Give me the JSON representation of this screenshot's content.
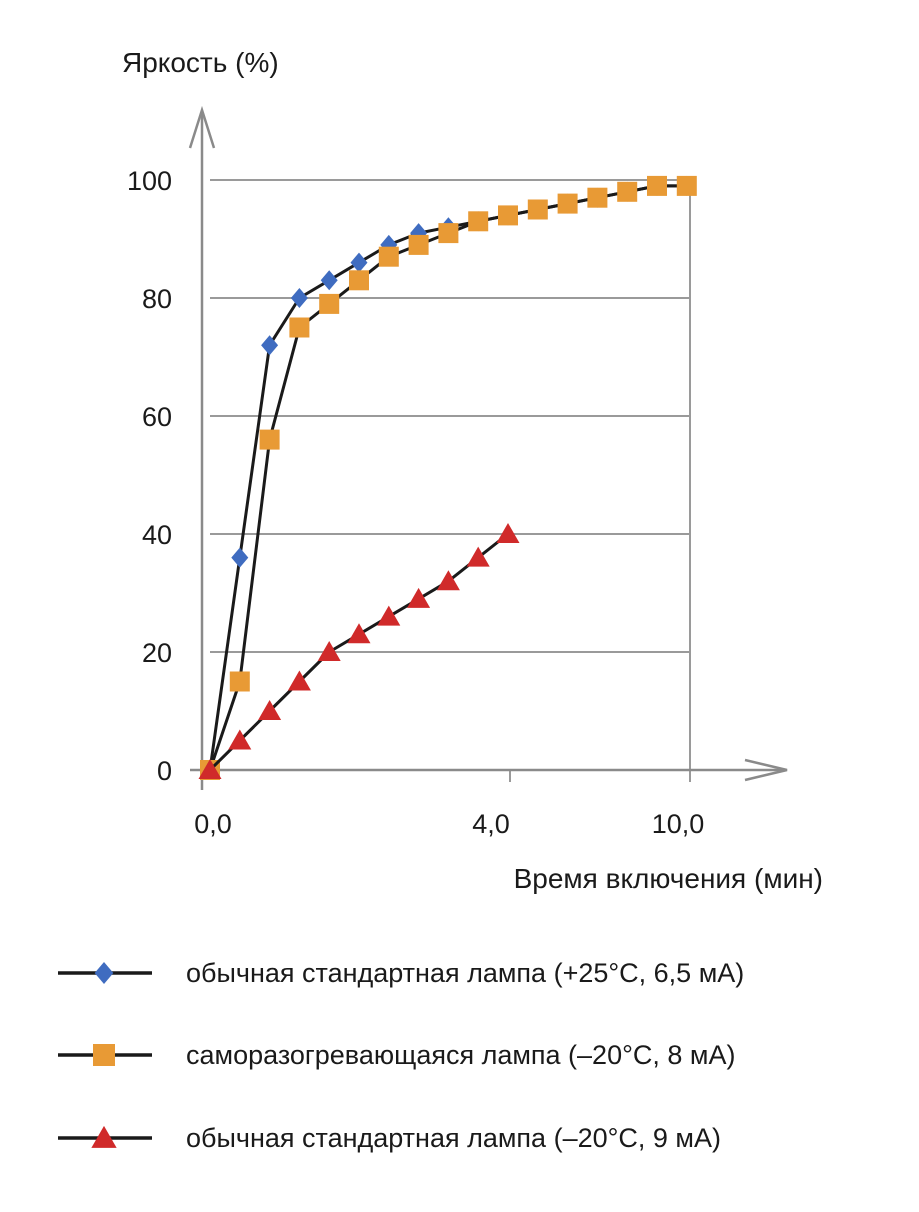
{
  "chart_data": {
    "type": "line",
    "ylabel": "Яркость (%)",
    "xlabel": "Время включения (мин)",
    "ylim": [
      0,
      100
    ],
    "yticks": [
      "0",
      "20",
      "40",
      "60",
      "80",
      "100"
    ],
    "xticks": [
      "0,0",
      "4,0",
      "10,0"
    ],
    "grid": "horizontal",
    "legend_position": "bottom",
    "series": [
      {
        "name": "обычная стандартная лампа (+25°C, 6,5 мА)",
        "marker": "diamond",
        "color": "#3f6cc0",
        "x": [
          0.0,
          0.5,
          1.0,
          1.5,
          2.0,
          2.5,
          3.0,
          3.5,
          4.0,
          4.5,
          5.0,
          5.5,
          6.0,
          6.5,
          7.0,
          7.5,
          8.0
        ],
        "values": [
          0,
          36,
          72,
          80,
          83,
          86,
          89,
          91,
          92,
          93,
          94,
          95,
          96,
          97,
          98,
          99,
          99
        ]
      },
      {
        "name": "саморазогревающаяся лампа (–20°C, 8 мА)",
        "marker": "square",
        "color": "#e89a35",
        "x": [
          0.0,
          0.5,
          1.0,
          1.5,
          2.0,
          2.5,
          3.0,
          3.5,
          4.0,
          4.5,
          5.0,
          5.5,
          6.0,
          6.5,
          7.0,
          7.5,
          8.0
        ],
        "values": [
          0,
          15,
          56,
          75,
          79,
          83,
          87,
          89,
          91,
          93,
          94,
          95,
          96,
          97,
          98,
          99,
          99
        ]
      },
      {
        "name": "обычная стандартная лампа (–20°C, 9 мА)",
        "marker": "triangle",
        "color": "#d02a2a",
        "x": [
          0.0,
          0.5,
          1.0,
          1.5,
          2.0,
          2.5,
          3.0,
          3.5,
          4.0,
          4.5,
          5.0
        ],
        "values": [
          0,
          5,
          10,
          15,
          20,
          23,
          26,
          29,
          32,
          36,
          40
        ]
      }
    ]
  }
}
